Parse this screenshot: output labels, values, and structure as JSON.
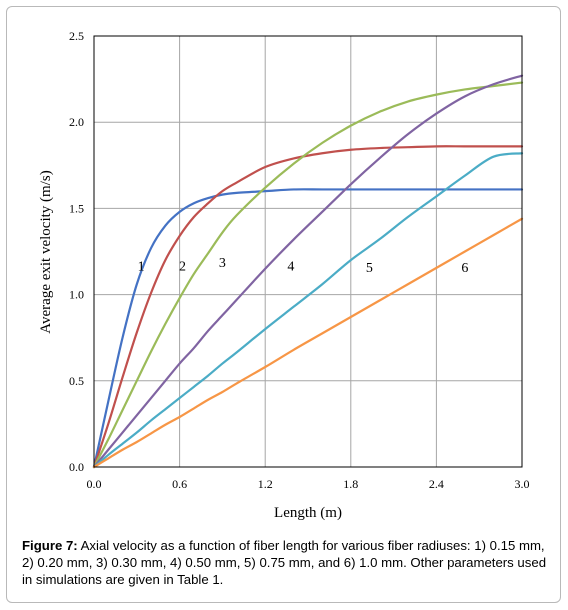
{
  "chart_data": {
    "type": "line",
    "xlabel": "Length (m)",
    "ylabel": "Average exit velocity (m/s)",
    "xlim": [
      0,
      3.0
    ],
    "ylim": [
      0,
      2.5
    ],
    "xticks": [
      "0.0",
      "0.6",
      "1.2",
      "1.8",
      "2.4",
      "3.0"
    ],
    "yticks": [
      "0.0",
      "0.5",
      "1.0",
      "1.5",
      "2.0",
      "2.5"
    ],
    "grid": true,
    "legend": "none",
    "x": [
      0,
      0.1,
      0.2,
      0.3,
      0.4,
      0.5,
      0.6,
      0.7,
      0.8,
      0.9,
      1.0,
      1.2,
      1.4,
      1.6,
      1.8,
      2.0,
      2.2,
      2.4,
      2.6,
      2.8,
      3.0
    ],
    "series": [
      {
        "name": "1",
        "label_at": [
          0.33,
          1.17
        ],
        "color": "#4472c4",
        "values": [
          0,
          0.38,
          0.75,
          1.06,
          1.27,
          1.4,
          1.48,
          1.53,
          1.56,
          1.58,
          1.59,
          1.6,
          1.61,
          1.61,
          1.61,
          1.61,
          1.61,
          1.61,
          1.61,
          1.61,
          1.61
        ]
      },
      {
        "name": "2",
        "label_at": [
          0.62,
          1.17
        ],
        "color": "#c0504d",
        "values": [
          0,
          0.25,
          0.52,
          0.78,
          1.01,
          1.2,
          1.34,
          1.45,
          1.53,
          1.6,
          1.65,
          1.74,
          1.79,
          1.82,
          1.84,
          1.85,
          1.855,
          1.86,
          1.86,
          1.86,
          1.86
        ]
      },
      {
        "name": "3",
        "label_at": [
          0.9,
          1.19
        ],
        "color": "#9bbb59",
        "values": [
          0,
          0.16,
          0.33,
          0.5,
          0.67,
          0.83,
          0.98,
          1.12,
          1.24,
          1.36,
          1.46,
          1.62,
          1.76,
          1.88,
          1.98,
          2.06,
          2.12,
          2.16,
          2.19,
          2.21,
          2.23
        ]
      },
      {
        "name": "4",
        "label_at": [
          1.38,
          1.17
        ],
        "color": "#8064a2",
        "values": [
          0,
          0.1,
          0.2,
          0.3,
          0.4,
          0.5,
          0.6,
          0.69,
          0.79,
          0.88,
          0.97,
          1.15,
          1.32,
          1.48,
          1.64,
          1.79,
          1.93,
          2.05,
          2.15,
          2.22,
          2.27
        ]
      },
      {
        "name": "5",
        "label_at": [
          1.93,
          1.16
        ],
        "color": "#4bacc6",
        "values": [
          0,
          0.07,
          0.135,
          0.2,
          0.27,
          0.335,
          0.4,
          0.465,
          0.53,
          0.6,
          0.665,
          0.8,
          0.93,
          1.06,
          1.2,
          1.32,
          1.45,
          1.57,
          1.69,
          1.8,
          1.82
        ]
      },
      {
        "name": "6",
        "label_at": [
          2.6,
          1.16
        ],
        "color": "#f79646",
        "values": [
          0,
          0.05,
          0.1,
          0.145,
          0.195,
          0.245,
          0.29,
          0.34,
          0.39,
          0.435,
          0.485,
          0.58,
          0.68,
          0.775,
          0.87,
          0.965,
          1.06,
          1.155,
          1.25,
          1.345,
          1.44
        ]
      }
    ]
  },
  "caption": {
    "label": "Figure 7:",
    "text": " Axial velocity as a function of fiber length for various fiber radiuses: 1) 0.15 mm, 2) 0.20 mm, 3) 0.30 mm, 4) 0.50 mm, 5) 0.75 mm, and 6) 1.0 mm. Other parameters used in simulations are given in Table 1."
  }
}
